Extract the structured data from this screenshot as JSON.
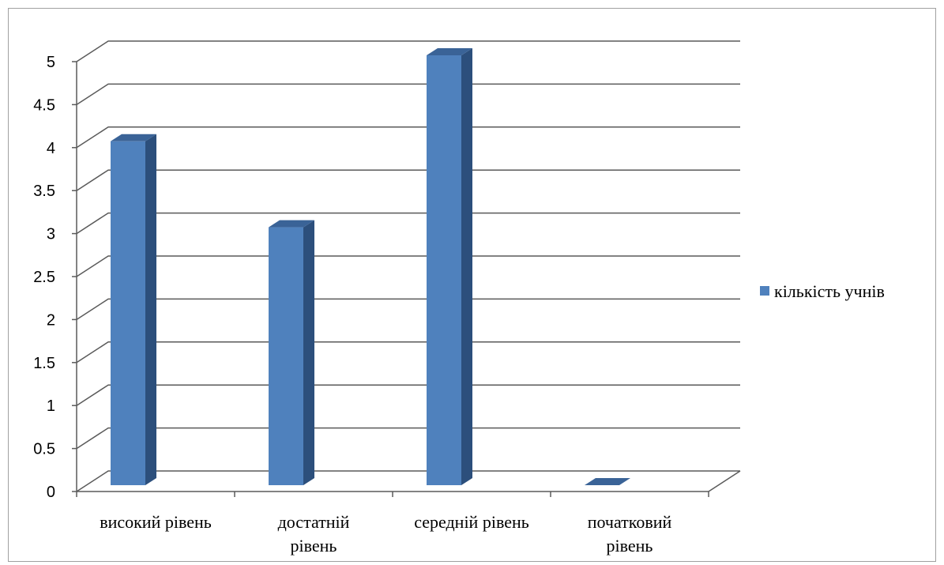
{
  "chart_data": {
    "type": "bar",
    "style": "3d-column",
    "categories": [
      [
        "високий рівень"
      ],
      [
        "достатній",
        "рівень"
      ],
      [
        "середній рівень"
      ],
      [
        "початковий",
        "рівень"
      ]
    ],
    "series": [
      {
        "name": "кількість учнів",
        "values": [
          4,
          3,
          5,
          0
        ]
      }
    ],
    "yticks": [
      "0",
      "0.5",
      "1",
      "1.5",
      "2",
      "2.5",
      "3",
      "3.5",
      "4",
      "4.5",
      "5"
    ],
    "ylim": [
      0,
      5
    ],
    "grid": true,
    "legend": "right"
  },
  "colors": {
    "bar_front": "#4f81bd",
    "bar_side": "#2c4f7c",
    "bar_top": "#3a6397",
    "grid": "#5a5a5a",
    "frame": "#a0a0a0"
  }
}
